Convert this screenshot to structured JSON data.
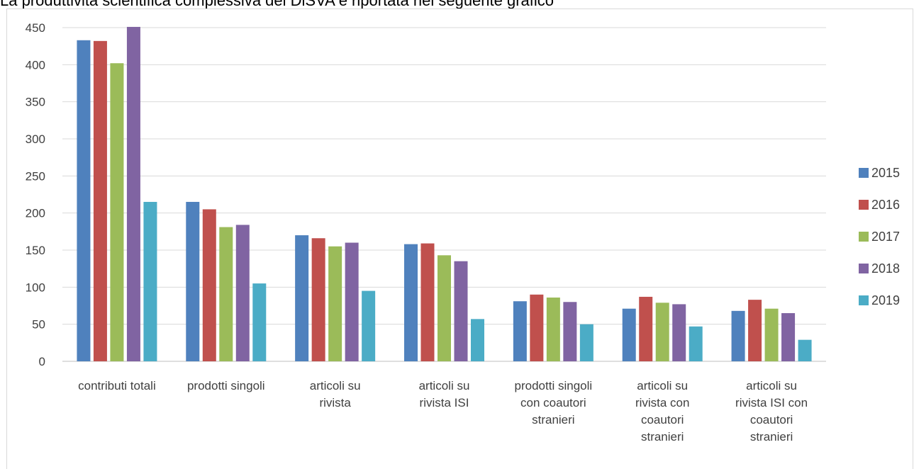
{
  "heading": "La produttività scientifica complessiva del DiSVA è riportata nel seguente grafico",
  "chart_data": {
    "type": "bar",
    "title": "",
    "xlabel": "",
    "ylabel": "",
    "ylim": [
      0,
      450
    ],
    "yticks": [
      0,
      50,
      100,
      150,
      200,
      250,
      300,
      350,
      400,
      450
    ],
    "grid": true,
    "legend_position": "right",
    "categories": [
      [
        "contributi totali"
      ],
      [
        "prodotti singoli"
      ],
      [
        "articoli su",
        "rivista"
      ],
      [
        "articoli su",
        "rivista ISI"
      ],
      [
        "prodotti singoli",
        "con coautori",
        "stranieri"
      ],
      [
        "articoli su",
        "rivista con",
        "coautori",
        "stranieri"
      ],
      [
        "articoli su",
        "rivista ISI con",
        "coautori",
        "stranieri"
      ]
    ],
    "series": [
      {
        "name": "2015",
        "color": "#4f81bd",
        "values": [
          433,
          215,
          170,
          158,
          81,
          71,
          68
        ]
      },
      {
        "name": "2016",
        "color": "#c0504d",
        "values": [
          432,
          205,
          166,
          159,
          90,
          87,
          83
        ]
      },
      {
        "name": "2017",
        "color": "#9bbb59",
        "values": [
          402,
          181,
          155,
          143,
          86,
          79,
          71
        ]
      },
      {
        "name": "2018",
        "color": "#8064a2",
        "values": [
          451,
          184,
          160,
          135,
          80,
          77,
          65
        ]
      },
      {
        "name": "2019",
        "color": "#4bacc6",
        "values": [
          215,
          105,
          95,
          57,
          50,
          47,
          29
        ]
      }
    ]
  }
}
